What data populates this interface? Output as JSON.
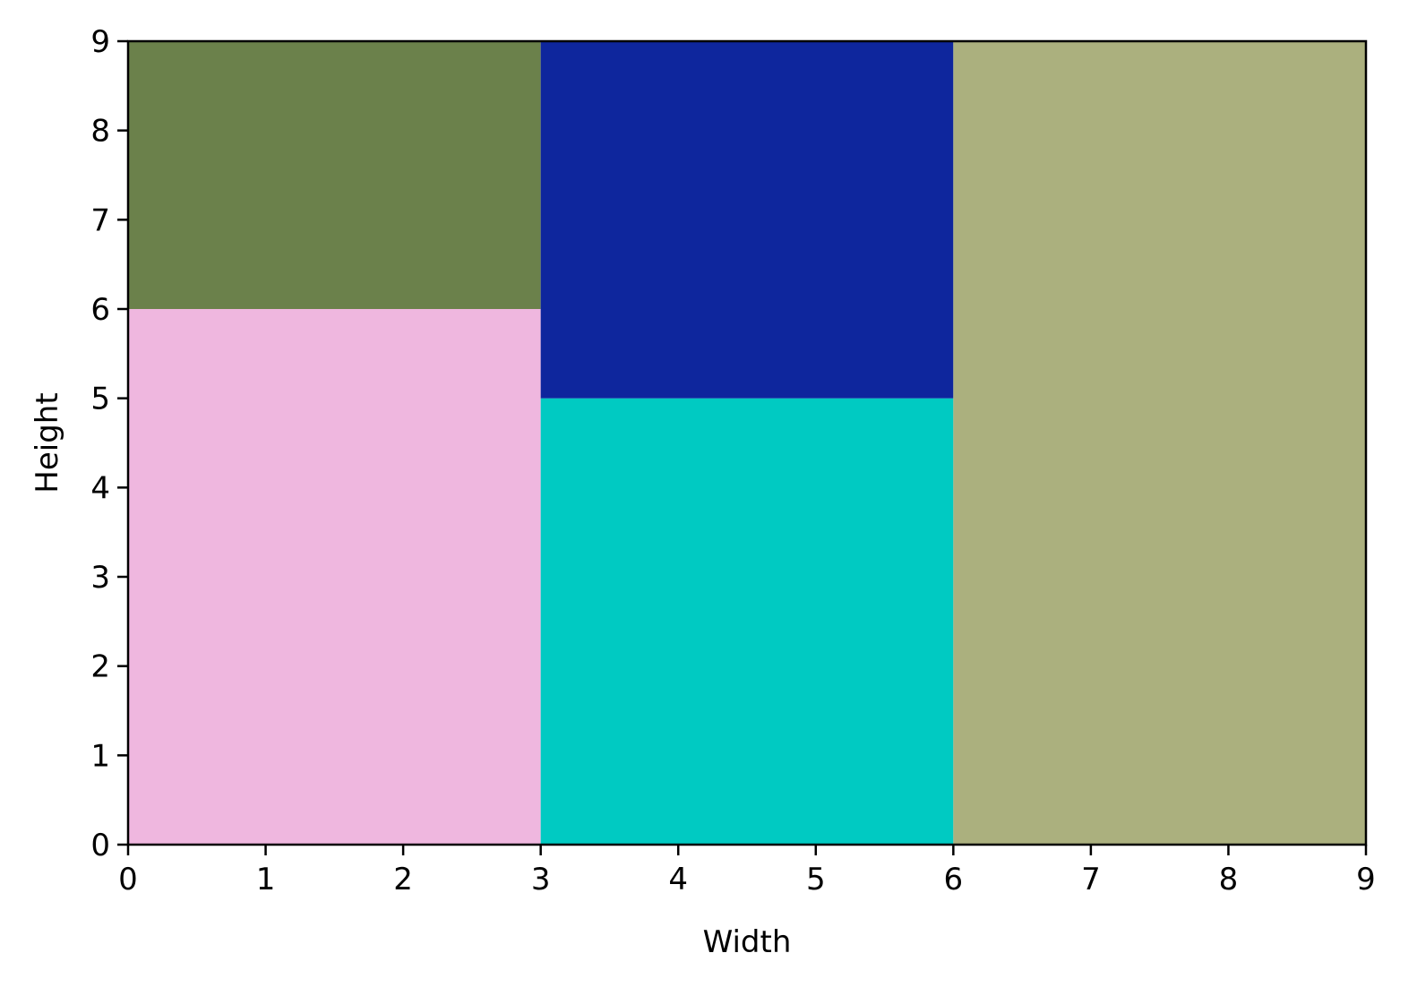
{
  "chart_data": {
    "type": "treemap",
    "title": "",
    "xlabel": "Width",
    "ylabel": "Height",
    "xlim": [
      0,
      9
    ],
    "ylim": [
      0,
      9
    ],
    "xticks": [
      "0",
      "1",
      "2",
      "3",
      "4",
      "5",
      "6",
      "7",
      "8",
      "9"
    ],
    "yticks": [
      "0",
      "1",
      "2",
      "3",
      "4",
      "5",
      "6",
      "7",
      "8",
      "9"
    ],
    "grid": false,
    "rectangles": [
      {
        "x": 0,
        "y": 0,
        "width": 3,
        "height": 6,
        "color": "#efb7df"
      },
      {
        "x": 0,
        "y": 6,
        "width": 3,
        "height": 3,
        "color": "#6b814b"
      },
      {
        "x": 3,
        "y": 0,
        "width": 3,
        "height": 5,
        "color": "#00cac2"
      },
      {
        "x": 3,
        "y": 5,
        "width": 3,
        "height": 4,
        "color": "#0e269d"
      },
      {
        "x": 6,
        "y": 0,
        "width": 3,
        "height": 9,
        "color": "#abb07e"
      }
    ]
  }
}
